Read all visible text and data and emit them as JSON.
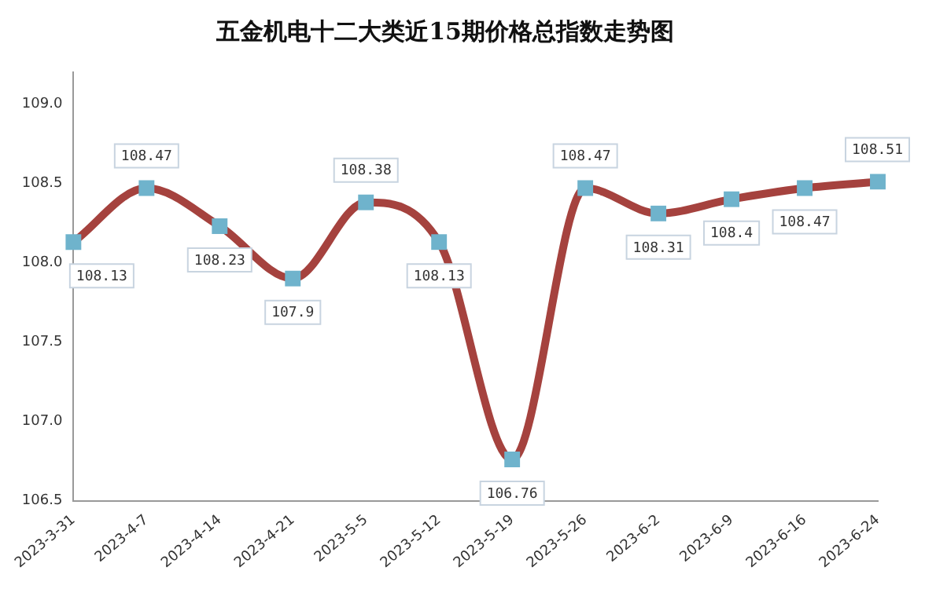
{
  "chart_data": {
    "type": "line",
    "title": "五金机电十二大类近15期价格总指数走势图",
    "categories": [
      "2023-3-31",
      "2023-4-7",
      "2023-4-14",
      "2023-4-21",
      "2023-5-5",
      "2023-5-12",
      "2023-5-19",
      "2023-5-26",
      "2023-6-2",
      "2023-6-9",
      "2023-6-16",
      "2023-6-24"
    ],
    "series": [
      {
        "color": "#a5423e",
        "values": [
          108.13,
          108.47,
          108.23,
          107.9,
          108.38,
          108.13,
          106.76,
          108.47,
          108.31,
          108.4,
          108.47,
          108.51
        ]
      }
    ],
    "ylim": [
      106.5,
      109.2
    ],
    "yticks": [
      {
        "value": 106.5,
        "label": "106.5"
      },
      {
        "value": 107,
        "label": "107.0"
      },
      {
        "value": 107.5,
        "label": "107.5"
      },
      {
        "value": 108,
        "label": "108.0"
      },
      {
        "value": 108.5,
        "label": "108.5"
      },
      {
        "value": 109,
        "label": "109.0"
      }
    ],
    "grid": false,
    "legend": false,
    "marker": "square",
    "line_style": "solid",
    "data_labels": true
  }
}
